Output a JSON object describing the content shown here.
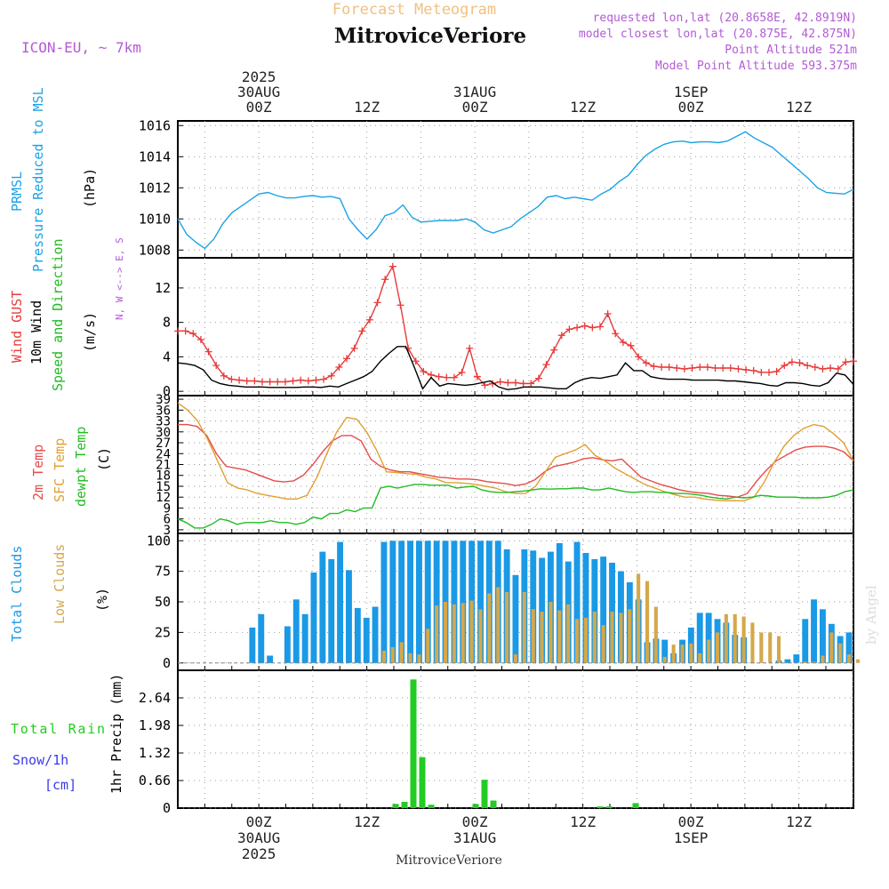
{
  "header": {
    "product": "Forecast Meteogram",
    "location": "MitroviceVeriore",
    "model": "ICON-EU, ~ 7km",
    "requested": "requested lon,lat (20.8658E, 42.8919N)",
    "closest": "model closest lon,lat (20.875E, 42.875N)",
    "point_altitude": "Point Altitude 521m",
    "model_altitude": "Model Point Altitude 593.375m",
    "watermark": "by Angel",
    "footer_location": "MitroviceVeriore"
  },
  "colors": {
    "pressure": "#1aa3e6",
    "gust": "#e83a3a",
    "wind": "#000000",
    "arrows_label": "#22bb22",
    "temp2m": "#e84a4a",
    "sfc": "#e0a030",
    "dewpt": "#22bb22",
    "total_clouds": "#1a99e6",
    "low_clouds": "#d4a84a",
    "rain": "#22cc22",
    "snow": "#3a3ae8",
    "header_purple": "#b35ad6",
    "header_orange": "#f0c080"
  },
  "chart_data": {
    "time_axis": {
      "start": "2025-08-29T15:00Z",
      "end": "2025-09-01T18:00Z",
      "step_hours": 1,
      "top_ticks": [
        {
          "hour": 9,
          "lines": [
            "2025",
            "30AUG",
            "00Z"
          ]
        },
        {
          "hour": 21,
          "lines": [
            "12Z"
          ]
        },
        {
          "hour": 33,
          "lines": [
            "31AUG",
            "00Z"
          ]
        },
        {
          "hour": 45,
          "lines": [
            "12Z"
          ]
        },
        {
          "hour": 57,
          "lines": [
            "1SEP",
            "00Z"
          ]
        },
        {
          "hour": 69,
          "lines": [
            "12Z"
          ]
        }
      ],
      "bottom_ticks": [
        {
          "hour": 9,
          "lines": [
            "00Z",
            "30AUG",
            "2025"
          ]
        },
        {
          "hour": 21,
          "lines": [
            "12Z"
          ]
        },
        {
          "hour": 33,
          "lines": [
            "00Z",
            "31AUG"
          ]
        },
        {
          "hour": 45,
          "lines": [
            "12Z"
          ]
        },
        {
          "hour": 57,
          "lines": [
            "00Z",
            "1SEP"
          ]
        },
        {
          "hour": 69,
          "lines": [
            "12Z"
          ]
        }
      ]
    },
    "panels": [
      {
        "id": "pressure",
        "type": "line",
        "labels": [
          "PRMSL",
          "Pressure Reduced to MSL",
          "(hPa)"
        ],
        "ylim": [
          1007.5,
          1016.3
        ],
        "yticks": [
          1008,
          1010,
          1012,
          1014,
          1016
        ],
        "series": [
          {
            "name": "PRMSL",
            "color_key": "pressure",
            "values": [
              1010.0,
              1009.0,
              1008.5,
              1008.1,
              1008.7,
              1009.7,
              1010.4,
              1010.8,
              1011.2,
              1011.6,
              1011.7,
              1011.5,
              1011.35,
              1011.35,
              1011.45,
              1011.5,
              1011.4,
              1011.45,
              1011.3,
              1010.0,
              1009.3,
              1008.7,
              1009.3,
              1010.2,
              1010.4,
              1010.9,
              1010.1,
              1009.8,
              1009.85,
              1009.9,
              1009.9,
              1009.9,
              1010.0,
              1009.8,
              1009.3,
              1009.1,
              1009.3,
              1009.5,
              1010.0,
              1010.4,
              1010.8,
              1011.4,
              1011.5,
              1011.3,
              1011.4,
              1011.3,
              1011.2,
              1011.6,
              1011.9,
              1012.4,
              1012.8,
              1013.5,
              1014.1,
              1014.5,
              1014.8,
              1014.95,
              1015.0,
              1014.9,
              1014.95,
              1014.95,
              1014.9,
              1015.0,
              1015.3,
              1015.6,
              1015.2,
              1014.9,
              1014.6,
              1014.1,
              1013.6,
              1013.1,
              1012.6,
              1012.0,
              1011.7,
              1011.65,
              1011.6,
              1011.9
            ]
          }
        ]
      },
      {
        "id": "wind",
        "type": "line",
        "labels": [
          "Wind GUST",
          "10m Wind",
          "Speed and Direction",
          "(m/s)"
        ],
        "compass": "N, W <--> E, S",
        "ylim": [
          -0.5,
          15.5
        ],
        "yticks": [
          0,
          4,
          8,
          12
        ],
        "series": [
          {
            "name": "Wind GUST",
            "color_key": "gust",
            "marker": "+",
            "values": [
              7.0,
              7.0,
              6.7,
              6.0,
              4.6,
              3.0,
              1.8,
              1.4,
              1.3,
              1.2,
              1.2,
              1.1,
              1.1,
              1.1,
              1.1,
              1.2,
              1.3,
              1.2,
              1.3,
              1.4,
              1.8,
              2.8,
              3.8,
              5.0,
              7.0,
              8.3,
              10.3,
              13.0,
              14.5,
              10.0,
              5.0,
              3.5,
              2.3,
              1.9,
              1.7,
              1.6,
              1.6,
              2.2,
              5.0,
              1.7,
              0.7,
              0.9,
              1.1,
              1.0,
              1.0,
              0.9,
              0.9,
              1.5,
              3.1,
              4.8,
              6.5,
              7.2,
              7.4,
              7.6,
              7.4,
              7.5,
              9.0,
              6.7,
              5.7,
              5.3,
              4.0,
              3.3,
              2.9,
              2.8,
              2.8,
              2.7,
              2.6,
              2.7,
              2.8,
              2.8,
              2.7,
              2.7,
              2.7,
              2.6,
              2.5,
              2.4,
              2.2,
              2.2,
              2.3,
              3.0,
              3.4,
              3.3,
              3.0,
              2.8,
              2.6,
              2.7,
              2.6,
              3.4,
              3.5
            ]
          },
          {
            "name": "10m Wind",
            "color_key": "wind",
            "values": [
              3.3,
              3.2,
              3.0,
              2.5,
              1.3,
              0.9,
              0.7,
              0.6,
              0.5,
              0.5,
              0.5,
              0.45,
              0.45,
              0.45,
              0.45,
              0.5,
              0.5,
              0.45,
              0.6,
              0.5,
              0.9,
              1.3,
              1.7,
              2.3,
              3.5,
              4.4,
              5.2,
              5.2,
              2.8,
              0.3,
              1.6,
              0.6,
              0.9,
              0.8,
              0.7,
              0.8,
              1.0,
              1.2,
              0.5,
              0.2,
              0.3,
              0.5,
              0.5,
              0.5,
              0.4,
              0.3,
              0.3,
              1.0,
              1.4,
              1.6,
              1.5,
              1.7,
              1.9,
              3.3,
              2.4,
              2.4,
              1.7,
              1.5,
              1.4,
              1.4,
              1.4,
              1.3,
              1.3,
              1.3,
              1.3,
              1.2,
              1.2,
              1.1,
              1.0,
              0.9,
              0.7,
              0.6,
              1.0,
              1.0,
              0.9,
              0.7,
              0.6,
              1.0,
              2.1,
              1.9,
              0.8
            ]
          }
        ]
      },
      {
        "id": "temperature",
        "type": "line",
        "labels": [
          "2m Temp",
          "SFC Temp",
          "dewpt Temp",
          "(C)"
        ],
        "ylim": [
          2,
          40
        ],
        "yticks": [
          3,
          6,
          9,
          12,
          15,
          18,
          21,
          24,
          27,
          30,
          33,
          36,
          39
        ],
        "series": [
          {
            "name": "2m Temp",
            "color_key": "temp2m",
            "values": [
              32.0,
              32.0,
              31.5,
              29.0,
              24.0,
              20.5,
              20.0,
              19.5,
              18.5,
              17.5,
              16.5,
              16.2,
              16.5,
              18.0,
              21.0,
              24.5,
              27.5,
              29.0,
              29.0,
              27.5,
              22.5,
              20.5,
              19.5,
              19.0,
              19.0,
              18.5,
              18.0,
              17.5,
              17.3,
              17.0,
              17.0,
              16.8,
              16.3,
              16.0,
              15.7,
              15.2,
              15.6,
              16.8,
              19.0,
              20.5,
              21.0,
              21.6,
              22.6,
              22.9,
              22.3,
              22.0,
              22.5,
              20.0,
              17.5,
              16.5,
              15.5,
              14.8,
              14.0,
              13.5,
              13.2,
              13.0,
              12.5,
              12.3,
              12.0,
              13.0,
              16.5,
              19.5,
              22.0,
              23.5,
              25.0,
              25.8,
              26.0,
              26.0,
              25.5,
              24.5,
              22.0
            ]
          },
          {
            "name": "SFC Temp",
            "color_key": "sfc",
            "values": [
              38.0,
              36.0,
              33.0,
              28.0,
              22.0,
              16.0,
              14.5,
              14.0,
              13.0,
              12.5,
              12.0,
              11.5,
              11.5,
              12.5,
              17.5,
              24.0,
              30.0,
              34.0,
              33.5,
              30.0,
              25.0,
              19.0,
              18.8,
              18.5,
              18.3,
              17.5,
              17.0,
              16.0,
              16.0,
              15.8,
              15.5,
              15.0,
              14.5,
              13.5,
              13.0,
              13.0,
              15.0,
              19.0,
              23.0,
              24.0,
              25.0,
              26.5,
              23.5,
              22.0,
              20.0,
              18.5,
              17.0,
              15.5,
              14.5,
              13.5,
              12.7,
              12.0,
              12.0,
              11.5,
              11.2,
              11.0,
              11.0,
              11.0,
              12.0,
              16.0,
              21.5,
              26.0,
              29.0,
              31.0,
              32.0,
              31.5,
              29.5,
              27.0,
              22.0
            ]
          },
          {
            "name": "dewpt Temp",
            "color_key": "dewpt",
            "values": [
              6.0,
              5.0,
              3.5,
              3.5,
              4.5,
              6.0,
              5.5,
              4.5,
              5.0,
              5.0,
              5.0,
              5.5,
              5.0,
              5.0,
              4.5,
              5.0,
              6.5,
              6.0,
              7.5,
              7.5,
              8.5,
              8.0,
              9.0,
              9.0,
              14.5,
              15.0,
              14.5,
              15.0,
              15.5,
              15.5,
              15.3,
              15.3,
              15.3,
              14.5,
              14.8,
              15.0,
              14.0,
              13.5,
              13.3,
              13.3,
              13.5,
              13.7,
              14.0,
              14.3,
              14.2,
              14.3,
              14.3,
              14.5,
              14.5,
              14.0,
              14.0,
              14.5,
              14.0,
              13.5,
              13.3,
              13.5,
              13.5,
              13.3,
              13.3,
              13.0,
              13.0,
              12.8,
              12.5,
              12.0,
              11.7,
              11.5,
              12.0,
              11.8,
              12.0,
              12.5,
              12.3,
              12.0,
              12.0,
              12.0,
              11.8,
              11.8,
              11.8,
              12.0,
              12.5,
              13.5,
              14.0
            ]
          }
        ]
      },
      {
        "id": "clouds",
        "type": "bar",
        "labels": [
          "Total Clouds",
          "Low Clouds",
          "(%)"
        ],
        "ylim": [
          -6,
          106
        ],
        "yticks": [
          0,
          25,
          50,
          75,
          100
        ],
        "series": [
          {
            "name": "Total Clouds",
            "color_key": "total_clouds",
            "values": [
              0,
              0,
              0,
              0,
              0,
              0,
              0,
              0,
              29,
              40,
              6,
              0,
              30,
              52,
              40,
              74,
              91,
              85,
              99,
              76,
              45,
              37,
              46,
              99,
              100,
              100,
              100,
              100,
              100,
              100,
              100,
              100,
              100,
              100,
              100,
              100,
              100,
              93,
              72,
              93,
              92,
              86,
              91,
              98,
              83,
              99,
              90,
              85,
              87,
              82,
              75,
              66,
              52,
              17,
              20,
              19,
              8,
              19,
              29,
              41,
              41,
              36,
              33,
              23,
              21,
              0,
              0,
              0,
              2,
              3,
              7,
              36,
              52,
              44,
              32,
              22,
              25
            ]
          },
          {
            "name": "Low Clouds",
            "color_key": "low_clouds",
            "values": [
              0,
              0,
              0,
              0,
              0,
              0,
              0,
              0,
              0,
              0,
              0,
              0,
              0,
              0,
              0,
              0,
              0,
              0,
              0,
              0,
              0,
              0,
              0,
              10,
              13,
              17,
              8,
              7,
              28,
              47,
              50,
              48,
              49,
              51,
              44,
              57,
              62,
              58,
              7,
              58,
              44,
              42,
              50,
              43,
              48,
              36,
              37,
              42,
              31,
              42,
              41,
              44,
              73,
              67,
              46,
              5,
              15,
              15,
              16,
              8,
              19,
              25,
              40,
              40,
              38,
              33,
              25,
              25,
              22,
              0,
              0,
              1,
              1,
              6,
              25,
              16,
              7,
              3,
              0,
              0
            ]
          }
        ]
      },
      {
        "id": "precip",
        "type": "bar",
        "labels": [
          "Total Rain",
          "Snow/1h",
          "[cm]",
          "1hr Precip (mm)"
        ],
        "ylim": [
          0,
          3.3
        ],
        "yticks": [
          0,
          0.66,
          1.32,
          1.98,
          2.64
        ],
        "series": [
          {
            "name": "Total Rain",
            "color_key": "rain",
            "values": [
              0,
              0,
              0,
              0,
              0,
              0,
              0,
              0,
              0,
              0,
              0,
              0,
              0,
              0,
              0,
              0,
              0,
              0,
              0,
              0,
              0,
              0,
              0,
              0,
              0.1,
              0.15,
              3.08,
              1.22,
              0.08,
              0,
              0,
              0,
              0,
              0.1,
              0.68,
              0.18,
              0,
              0,
              0,
              0,
              0,
              0,
              0,
              0,
              0,
              0,
              0,
              0.04,
              0.04,
              0,
              0,
              0.12,
              0,
              0,
              0,
              0,
              0,
              0,
              0,
              0,
              0,
              0,
              0,
              0,
              0,
              0,
              0,
              0,
              0,
              0,
              0,
              0,
              0,
              0,
              0,
              0
            ]
          }
        ]
      }
    ]
  }
}
